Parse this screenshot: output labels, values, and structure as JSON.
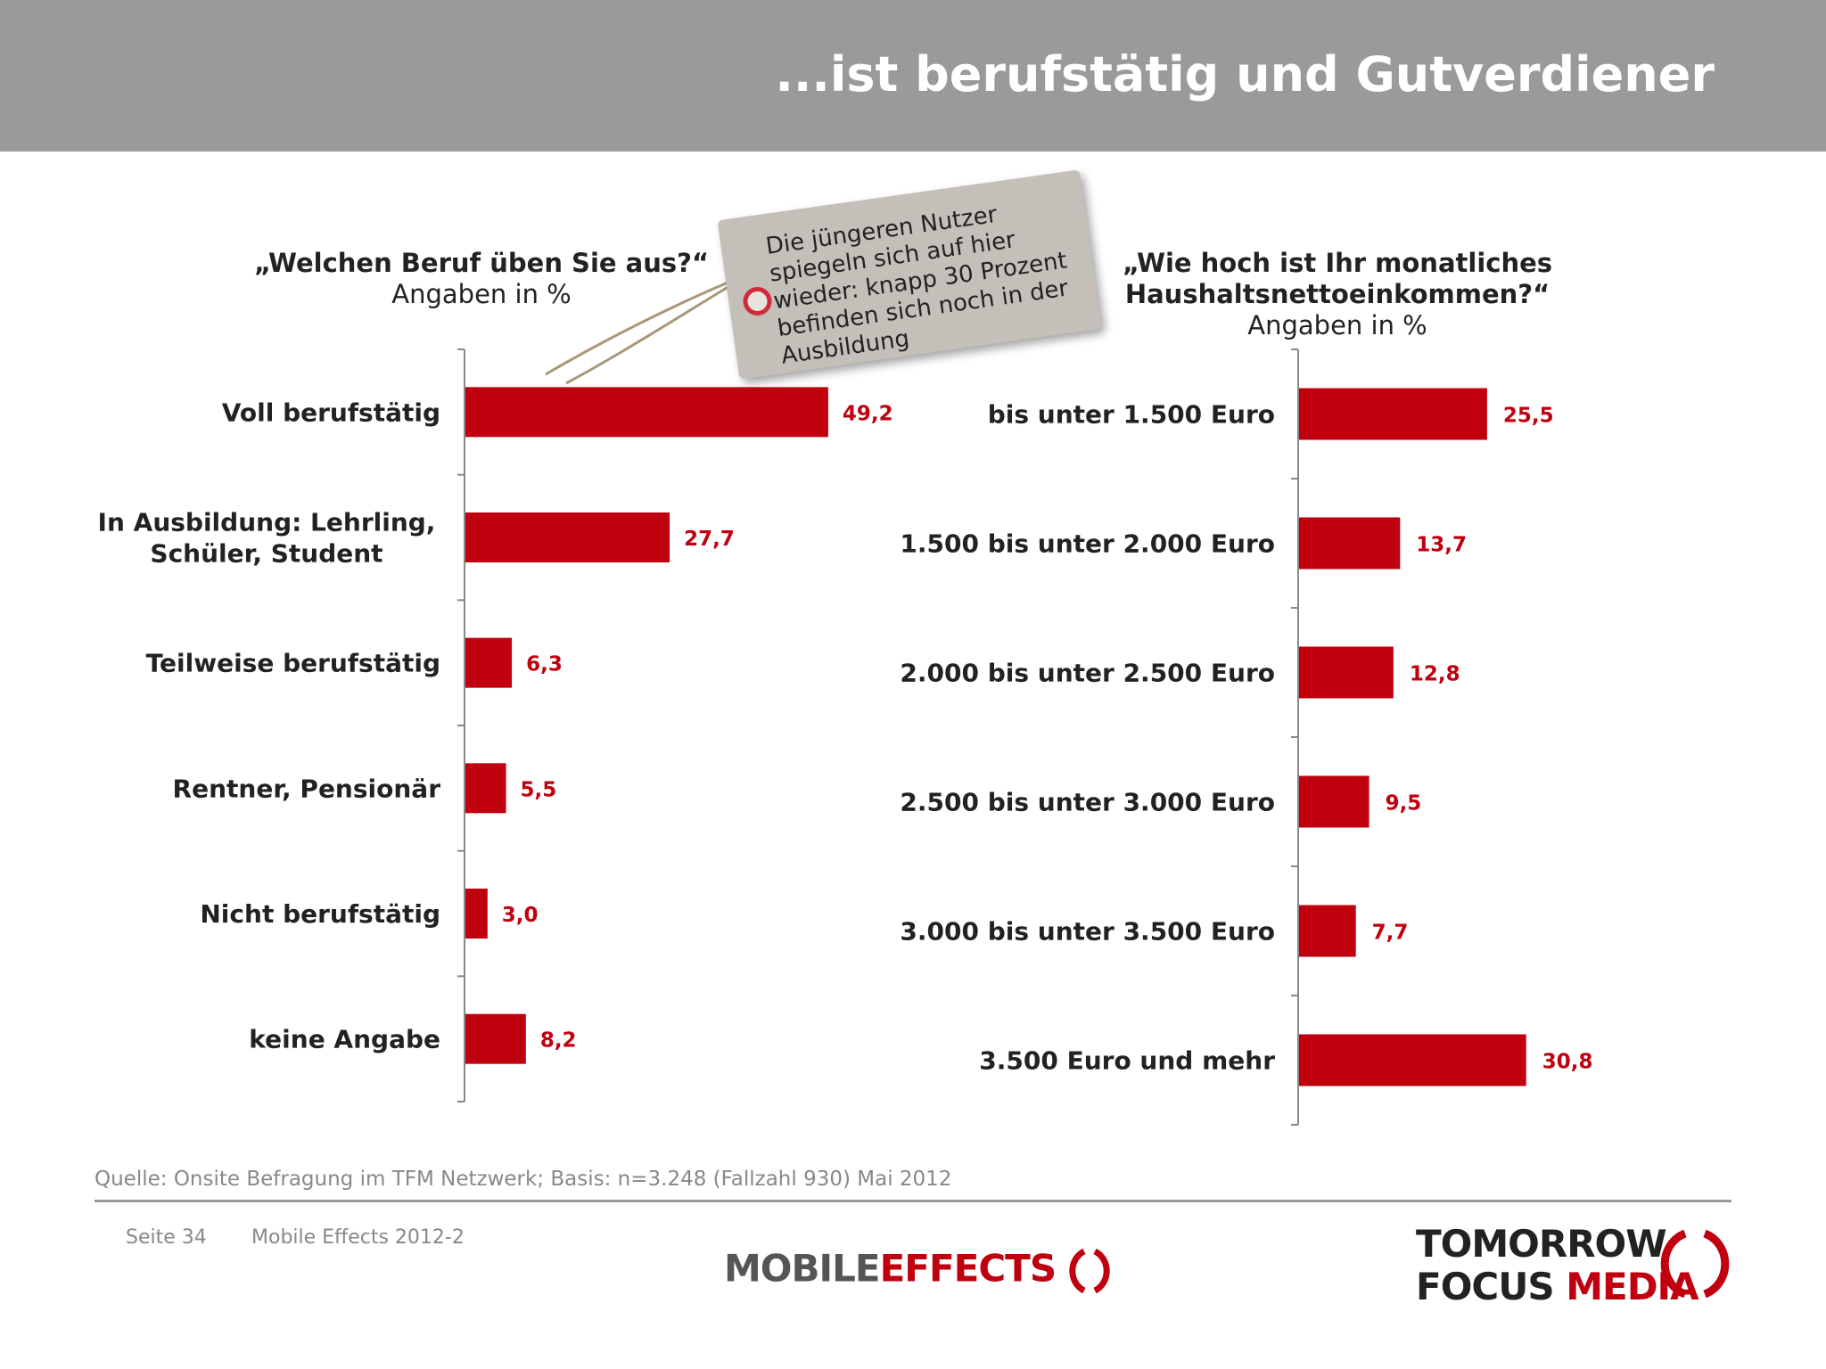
{
  "header": {
    "title": "...ist berufstätig und Gutverdiener"
  },
  "note": {
    "text": "Die jüngeren Nutzer spiegeln sich auf hier wieder: knapp 30 Prozent befinden sich noch in der Ausbildung"
  },
  "footer": {
    "source": "Quelle: Onsite Befragung im TFM Netzwerk; Basis: n=3.248 (Fallzahl 930) Mai 2012",
    "page": "Seite 34",
    "doc": "Mobile Effects 2012-2",
    "logo_mobile": "MOBILE",
    "logo_effects": "EFFECTS",
    "logo_tomorrow": "TOMORROW",
    "logo_focus": "FOCUS",
    "logo_media": "MEDIA"
  },
  "colors": {
    "bar": "#c0000f",
    "header": "#9a9a9a",
    "value": "#c0000f"
  },
  "chart_data": [
    {
      "type": "bar",
      "orientation": "horizontal",
      "title": "„Welchen Beruf üben Sie aus?“",
      "subtitle": "Angaben in %",
      "categories": [
        "Voll berufstätig",
        "In Ausbildung: Lehrling,\nSchüler, Student",
        "Teilweise berufstätig",
        "Rentner, Pensionär",
        "Nicht berufstätig",
        "keine Angabe"
      ],
      "values": [
        49.2,
        27.7,
        6.3,
        5.5,
        3.0,
        8.2
      ],
      "value_labels": [
        "49,2",
        "27,7",
        "6,3",
        "5,5",
        "3,0",
        "8,2"
      ]
    },
    {
      "type": "bar",
      "orientation": "horizontal",
      "title": "„Wie hoch ist Ihr monatliches\nHaushaltsnettoeinkommen?“",
      "subtitle": "Angaben in %",
      "categories": [
        "bis unter 1.500 Euro",
        "1.500 bis unter 2.000 Euro",
        "2.000 bis unter 2.500 Euro",
        "2.500 bis unter 3.000 Euro",
        "3.000 bis unter 3.500 Euro",
        "3.500 Euro und mehr"
      ],
      "values": [
        25.5,
        13.7,
        12.8,
        9.5,
        7.7,
        30.8
      ],
      "value_labels": [
        "25,5",
        "13,7",
        "12,8",
        "9,5",
        "7,7",
        "30,8"
      ]
    }
  ]
}
